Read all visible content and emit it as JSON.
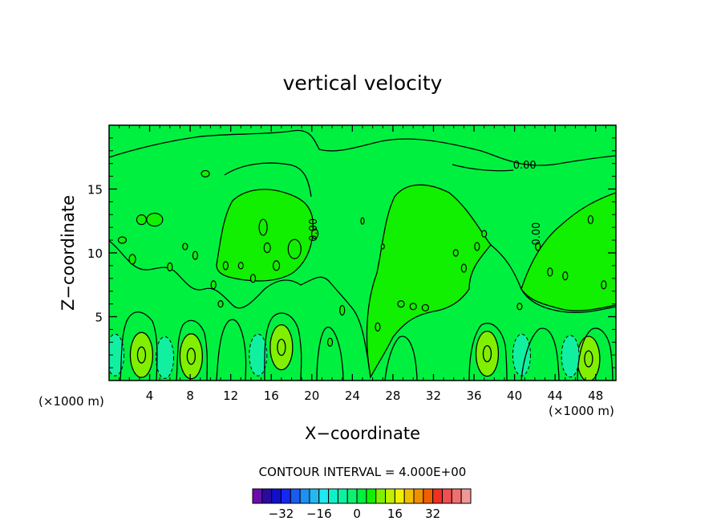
{
  "chart_data": {
    "type": "contour",
    "title": "vertical velocity",
    "xlabel": "X−coordinate",
    "ylabel": "Z−coordinate",
    "x_unit_left": "(×1000 m)",
    "x_unit_right": "(×1000 m)",
    "xlim": [
      0,
      50
    ],
    "ylim": [
      0,
      20
    ],
    "x_ticks": [
      4,
      8,
      12,
      16,
      20,
      24,
      28,
      32,
      36,
      40,
      44,
      48
    ],
    "x_tick_labels": [
      "4",
      "8",
      "12",
      "16",
      "20",
      "24",
      "28",
      "32",
      "36",
      "40",
      "44",
      "48"
    ],
    "y_ticks": [
      5,
      10,
      15
    ],
    "y_tick_labels": [
      "5",
      "10",
      "15"
    ],
    "contour_interval_label": "CONTOUR INTERVAL = 4.000E+00",
    "contour_interval": 4.0,
    "contour_labels": [
      {
        "text": "0.00",
        "x": 41.0,
        "y": 16.6
      },
      {
        "text": "0.00",
        "x": 20.5,
        "y": 11.8
      },
      {
        "text": "0.00",
        "x": 42.5,
        "y": 11.5
      }
    ],
    "colorbar": {
      "colors": [
        "#6a0dad",
        "#2a0aa0",
        "#1010c8",
        "#1428f0",
        "#1a5cf0",
        "#1e90f0",
        "#22b8f0",
        "#22e8f0",
        "#10f0c8",
        "#10f0a0",
        "#10f070",
        "#00f040",
        "#10f000",
        "#80f000",
        "#c0f000",
        "#f0f000",
        "#f0c000",
        "#f09000",
        "#f06000",
        "#f03020",
        "#f05050",
        "#f07070",
        "#f09898"
      ],
      "tick_values": [
        -32,
        -16,
        0,
        16,
        32
      ],
      "tick_labels": [
        "−32",
        "−16",
        "0",
        "16",
        "32"
      ],
      "range": [
        -44,
        48
      ]
    },
    "upward_cores": [
      {
        "x": 3.2,
        "y": 2.0
      },
      {
        "x": 8.1,
        "y": 1.9
      },
      {
        "x": 17.0,
        "y": 2.6
      },
      {
        "x": 37.3,
        "y": 2.1
      },
      {
        "x": 47.3,
        "y": 1.7
      }
    ],
    "downward_cores": [
      {
        "x": 0.6,
        "y": 2.0
      },
      {
        "x": 5.5,
        "y": 1.8
      },
      {
        "x": 14.7,
        "y": 2.0
      },
      {
        "x": 40.7,
        "y": 2.0
      },
      {
        "x": 45.5,
        "y": 1.9
      }
    ]
  }
}
